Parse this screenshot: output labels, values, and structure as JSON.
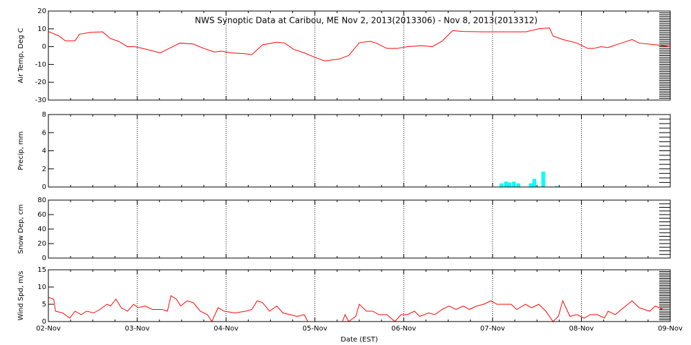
{
  "chart_data": [
    {
      "type": "line",
      "title": "NWS Synoptic Data at Caribou, ME   Nov  2, 2013(2013306) - Nov  8, 2013(2013312)",
      "ylabel": "Air Temp, Deg C",
      "color": "#ff0000",
      "x": [
        0,
        0.12,
        0.19,
        0.3,
        0.35,
        0.47,
        0.61,
        0.7,
        0.79,
        0.89,
        0.97,
        1.09,
        1.26,
        1.36,
        1.48,
        1.63,
        1.75,
        1.87,
        1.94,
        2.06,
        2.22,
        2.29,
        2.41,
        2.57,
        2.66,
        2.76,
        2.88,
        2.99,
        3.11,
        3.27,
        3.38,
        3.5,
        3.62,
        3.69,
        3.81,
        3.93,
        4.04,
        4.2,
        4.32,
        4.43,
        4.55,
        4.67,
        4.9,
        5.21,
        5.37,
        5.52,
        5.64,
        5.68,
        5.79,
        5.95,
        6.07,
        6.14,
        6.22,
        6.3,
        6.45,
        6.57,
        6.65,
        6.84,
        7.0
      ],
      "values": [
        8.5,
        6,
        3.3,
        3.3,
        7,
        8,
        8.3,
        4.5,
        3,
        0,
        0,
        -1.3,
        -3.5,
        -1,
        2,
        1.5,
        -1,
        -3,
        -2.5,
        -3.5,
        -4,
        -4.5,
        1,
        2.5,
        2,
        -1.5,
        -3.5,
        -5.8,
        -8,
        -7,
        -5,
        2.2,
        3,
        2,
        -1,
        -1,
        0,
        0.5,
        0,
        3,
        9,
        8.5,
        8.3,
        8.3,
        8.3,
        10,
        10.5,
        6,
        4,
        2,
        -1,
        -1,
        0,
        -0.5,
        2,
        4,
        2,
        1,
        0
      ],
      "xlim": [
        0,
        7
      ],
      "ylim": [
        -30,
        20
      ],
      "yticks": [
        -30,
        -20,
        -10,
        0,
        10,
        20
      ],
      "xgrid": true
    },
    {
      "type": "bar",
      "ylabel": "Precip, mm",
      "color": "#00ffff",
      "x": [
        5.1,
        5.15,
        5.19,
        5.24,
        5.29,
        5.43,
        5.47,
        5.57,
        5.72
      ],
      "values": [
        0.4,
        0.6,
        0.5,
        0.6,
        0.4,
        0.4,
        0.9,
        1.7,
        0.1
      ],
      "xlim": [
        0,
        7
      ],
      "ylim": [
        0,
        8
      ],
      "yticks": [
        0,
        2,
        4,
        6,
        8
      ],
      "xgrid": true
    },
    {
      "type": "line",
      "ylabel": "Snow Dep, cm",
      "color": "#ff0000",
      "x": [],
      "values": [],
      "xlim": [
        0,
        7
      ],
      "ylim": [
        0,
        80
      ],
      "yticks": [
        0,
        20,
        40,
        60,
        80
      ],
      "xgrid": true
    },
    {
      "type": "line",
      "ylabel": "Wind Spd, m/s",
      "xlabel": "Date (EST)",
      "color": "#ff0000",
      "x": [
        0,
        0.06,
        0.08,
        0.16,
        0.24,
        0.3,
        0.37,
        0.43,
        0.51,
        0.58,
        0.66,
        0.7,
        0.76,
        0.82,
        0.89,
        0.96,
        1.01,
        1.09,
        1.17,
        1.28,
        1.34,
        1.38,
        1.44,
        1.49,
        1.56,
        1.63,
        1.71,
        1.79,
        1.84,
        1.91,
        1.98,
        2.1,
        2.22,
        2.29,
        2.35,
        2.41,
        2.49,
        2.57,
        2.64,
        2.72,
        2.8,
        2.88,
        2.92,
        3.31,
        3.34,
        3.38,
        3.46,
        3.5,
        3.58,
        3.65,
        3.72,
        3.81,
        3.9,
        3.97,
        4.04,
        4.12,
        4.18,
        4.28,
        4.35,
        4.43,
        4.51,
        4.59,
        4.67,
        4.74,
        4.82,
        4.9,
        4.98,
        5.05,
        5.21,
        5.27,
        5.37,
        5.44,
        5.52,
        5.6,
        5.68,
        5.74,
        5.79,
        5.87,
        5.95,
        6.03,
        6.1,
        6.18,
        6.26,
        6.3,
        6.38,
        6.45,
        6.57,
        6.65,
        6.77,
        6.83,
        6.92,
        7.0
      ],
      "values": [
        7,
        6.5,
        3,
        2.5,
        1,
        3,
        2,
        3,
        2.5,
        3.5,
        5,
        4.5,
        6.5,
        4,
        3,
        5,
        4,
        4.5,
        3.5,
        3.5,
        3,
        7.5,
        6.5,
        4.5,
        6,
        5.5,
        3,
        2,
        0,
        4,
        3,
        2.5,
        3,
        3.5,
        6,
        5.5,
        3,
        4.5,
        2.5,
        2,
        1.5,
        2,
        0,
        0,
        2,
        0,
        1.5,
        5,
        3,
        3,
        2,
        2,
        0,
        2,
        2,
        3,
        1.5,
        2.5,
        2,
        3.5,
        4.5,
        3.5,
        4.5,
        3.5,
        4.5,
        5,
        6,
        5,
        5,
        3.5,
        5,
        4,
        5,
        3,
        0,
        1.5,
        6,
        1.5,
        2,
        1,
        2,
        2,
        1,
        3,
        2,
        3.5,
        6,
        4,
        3,
        4.5,
        3.5,
        3.5
      ],
      "xlim": [
        0,
        7
      ],
      "ylim": [
        0,
        15
      ],
      "yticks": [
        0,
        5,
        10,
        15
      ],
      "xgrid": true,
      "xticks": [
        {
          "value": 0,
          "label": "02-Nov"
        },
        {
          "value": 1,
          "label": "03-Nov"
        },
        {
          "value": 2,
          "label": "04-Nov"
        },
        {
          "value": 3,
          "label": "05-Nov"
        },
        {
          "value": 4,
          "label": "06-Nov"
        },
        {
          "value": 5,
          "label": "07-Nov"
        },
        {
          "value": 6,
          "label": "08-Nov"
        },
        {
          "value": 7,
          "label": "09-Nov"
        }
      ]
    }
  ]
}
